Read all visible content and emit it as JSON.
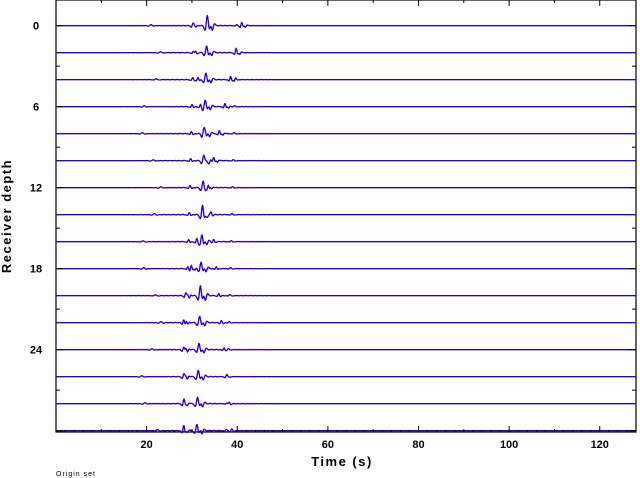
{
  "chart_data": {
    "type": "line",
    "title": "",
    "xlabel": "Time (s)",
    "ylabel": "Receiver depth",
    "xlim": [
      0,
      128
    ],
    "ylim": [
      -1.9,
      30.1
    ],
    "y_inverted": true,
    "x_ticks": [
      20,
      40,
      60,
      80,
      100,
      120
    ],
    "y_ticks": [
      0,
      6,
      12,
      18,
      24
    ],
    "grid": false,
    "trace_depths": [
      0,
      2,
      4,
      6,
      8,
      10,
      12,
      14,
      16,
      18,
      20,
      22,
      24,
      26,
      28,
      30
    ],
    "series": [
      {
        "color": "#ff0000"
      },
      {
        "color": "#0000ff"
      }
    ],
    "annotation": "Origin set"
  }
}
